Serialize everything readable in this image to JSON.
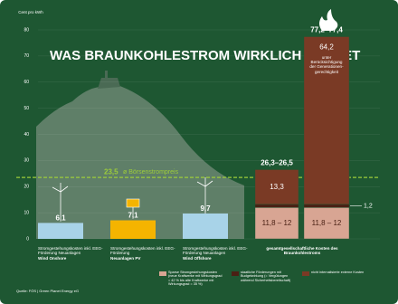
{
  "chart_data": {
    "type": "bar",
    "title": "WAS BRAUNKOHLESTROM WIRKLICH KOSTET",
    "y_label": "Cent pro kWh",
    "ylim": [
      0,
      80
    ],
    "yticks": [
      0,
      10,
      20,
      30,
      40,
      50,
      60,
      70,
      80
    ],
    "grid": true,
    "categories": [
      "Stromgestehungskosten inkl. EEG-Förderung Neuanlagen",
      "Stromgestehungskosten inkl. EEG-Förderung",
      "Stromgestehungskosten inkl. EEG-Förderung Neuanlagen",
      "gesamtgesellschaftliche Kosten des Braunkohlestroms",
      null
    ],
    "category_notes": [
      "Wind Onshore",
      "Neuanlagen PV",
      "Wind Offshore",
      null,
      null
    ],
    "values": [
      6.1,
      7.1,
      9.7,
      null,
      null
    ],
    "value_labels": [
      "6,1",
      "7,1",
      "9,7",
      null,
      null
    ],
    "colors": [
      "#a8d3e8",
      "#f5b400",
      "#a8d3e8",
      null,
      null
    ],
    "series": [
      {
        "name": "Sparse Stromgestehungskosten (neue Kraftwerke mit Wirkungsgrad = 42 % bis alte Kraftwerke mit Wirkungsgrad = 35 %)",
        "color": "#d8a593",
        "values": [
          null,
          null,
          null,
          12,
          12
        ],
        "value_labels": [
          null,
          null,
          null,
          "11,8 – 12",
          "11,8 – 12"
        ]
      },
      {
        "name": "staatliche Förderungen mit Budgetwirkung (= Vergütungen während Sicherheitsbereitschaft)",
        "color": "#4a2014",
        "values": [
          null,
          null,
          null,
          1.2,
          1.2
        ],
        "value_labels": [
          null,
          null,
          null,
          null,
          "1,2"
        ]
      },
      {
        "name": "nicht internalisierte externe Kosten",
        "color": "#7a3a25",
        "values": [
          null,
          null,
          null,
          13.3,
          64.2
        ],
        "value_labels": [
          null,
          null,
          null,
          "13,3",
          "64,2"
        ]
      }
    ],
    "total_labels": [
      null,
      null,
      null,
      "26,3–26,5",
      "77,2–77,4"
    ],
    "annotation": "unter Berücksichtigung der Generationen-gerechtigkeit",
    "reference_line": {
      "value": 23.5,
      "value_label": "23,5",
      "label": "ø Börsenstrompreis",
      "color": "#9ccc3a"
    },
    "source": "Quelle: FÖS | Green Planet Energy eG"
  }
}
